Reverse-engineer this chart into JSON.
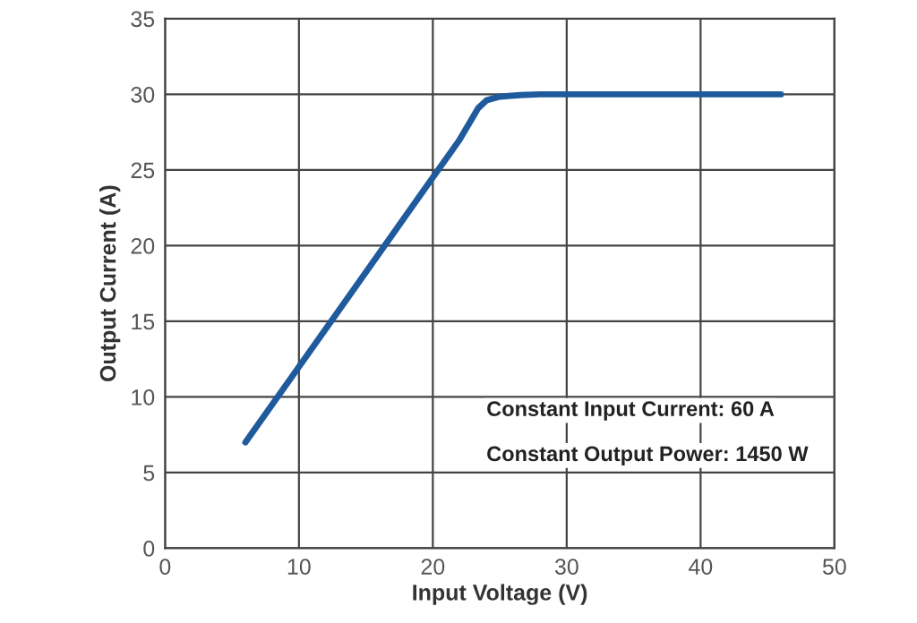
{
  "chart_data": {
    "type": "line",
    "xlabel": "Input Voltage (V)",
    "ylabel": "Output Current (A)",
    "x": [
      6,
      10,
      14,
      18,
      20,
      22,
      22.8,
      23.4,
      24,
      25,
      26.5,
      28,
      30,
      35,
      40,
      46
    ],
    "series": [
      {
        "color": "#1f5b9c",
        "values": [
          7,
          12,
          17,
          22,
          24.5,
          27,
          28.2,
          29.1,
          29.6,
          29.85,
          29.95,
          30,
          30,
          30,
          30,
          30
        ]
      }
    ],
    "xlim": [
      0,
      50
    ],
    "xticks": [
      0,
      10,
      20,
      30,
      40,
      50
    ],
    "ylim": [
      0,
      35
    ],
    "yticks": [
      0,
      5,
      10,
      15,
      20,
      25,
      30,
      35
    ],
    "grid": true,
    "legend": false,
    "marker": "none",
    "line_style": "solid",
    "annotations": [
      {
        "text": "Constant Input Current: 60 A"
      },
      {
        "text": "Constant Output Power: 1450 W"
      }
    ]
  }
}
